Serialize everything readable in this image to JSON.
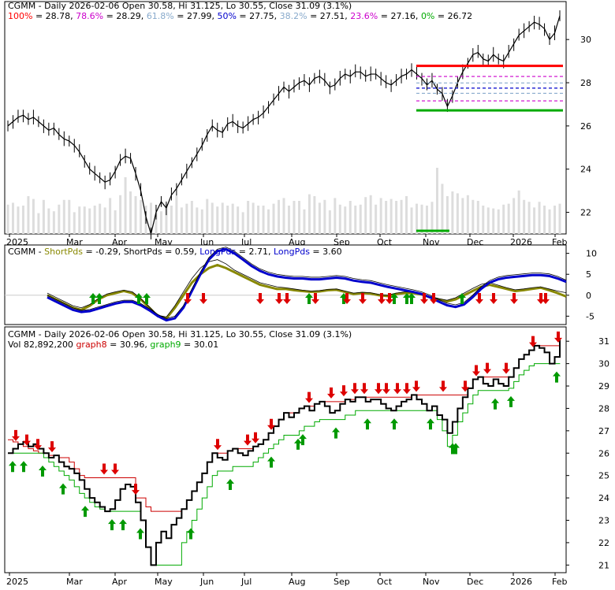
{
  "chart_data": [
    {
      "type": "line",
      "panel": "price-fibonacci",
      "legend": {
        "prefix": "CGMM - Daily 2026-02-06 Open 30.58, Hi 31.125, Lo 30.55, Close 31.09 (3.1%)",
        "levels": [
          {
            "label": "100%",
            "value": "28.78",
            "color": "#ff0000",
            "y": 28.78
          },
          {
            "label": "78.6%",
            "value": "28.29",
            "color": "#cc00cc",
            "y": 28.29
          },
          {
            "label": "61.8%",
            "value": "27.99",
            "color": "#88aacc",
            "y": 27.99
          },
          {
            "label": "50%",
            "value": "27.75",
            "color": "#0000cc",
            "y": 27.75
          },
          {
            "label": "38.2%",
            "value": "27.51",
            "color": "#88aacc",
            "y": 27.51
          },
          {
            "label": "23.6%",
            "value": "27.16",
            "color": "#cc00cc",
            "y": 27.16
          },
          {
            "label": "0%",
            "value": "26.72",
            "color": "#00aa00",
            "y": 26.72
          }
        ]
      },
      "ylim": [
        21,
        31.1
      ],
      "yticks": [
        22,
        24,
        26,
        28,
        30
      ],
      "xticks": [
        "2025",
        "Mar",
        "Apr",
        "May",
        "Jun",
        "Jul",
        "Aug",
        "Sep",
        "Oct",
        "Nov",
        "Dec",
        "2026",
        "Feb"
      ],
      "series": [
        {
          "values": [
            26.0,
            26.2,
            26.4,
            26.5,
            26.3,
            26.4,
            26.2,
            26.0,
            25.8,
            25.9,
            25.6,
            25.4,
            25.3,
            25.1,
            24.8,
            24.4,
            24.0,
            23.8,
            23.6,
            23.4,
            23.5,
            23.9,
            24.4,
            24.6,
            24.5,
            23.8,
            23.0,
            21.8,
            21.0,
            22.0,
            22.5,
            22.2,
            22.8,
            23.1,
            23.5,
            23.9,
            24.3,
            24.7,
            25.1,
            25.6,
            26.0,
            25.8,
            25.7,
            26.1,
            26.2,
            26.0,
            25.9,
            26.1,
            26.3,
            26.4,
            26.6,
            26.9,
            27.2,
            27.5,
            27.8,
            27.6,
            27.8,
            28.0,
            28.1,
            27.9,
            28.2,
            28.3,
            28.1,
            27.8,
            27.9,
            28.2,
            28.4,
            28.3,
            28.5,
            28.5,
            28.3,
            28.4,
            28.4,
            28.2,
            28.0,
            27.9,
            28.1,
            28.3,
            28.4,
            28.6,
            28.4,
            28.2,
            27.9,
            28.1,
            27.7,
            27.5,
            26.9,
            27.4,
            28.0,
            28.5,
            28.9,
            29.3,
            29.4,
            29.1,
            29.0,
            29.3,
            29.1,
            29.0,
            29.4,
            29.8,
            30.2,
            30.4,
            30.6,
            30.8,
            30.7,
            30.5,
            30.0,
            30.3,
            31.1
          ]
        }
      ],
      "volume": [
        31,
        33,
        29,
        30,
        40,
        37,
        22,
        36,
        27,
        24,
        31,
        36,
        36,
        23,
        29,
        29,
        27,
        30,
        32,
        28,
        38,
        25,
        41,
        60,
        45,
        40,
        36,
        30,
        33,
        23,
        24,
        32,
        30,
        40,
        28,
        32,
        35,
        28,
        26,
        37,
        33,
        29,
        33,
        30,
        32,
        29,
        23,
        35,
        33,
        30,
        30,
        26,
        32,
        36,
        38,
        30,
        35,
        35,
        26,
        42,
        40,
        33,
        36,
        25,
        38,
        31,
        29,
        35,
        30,
        31,
        39,
        41,
        31,
        38,
        35,
        37,
        35,
        36,
        40,
        28,
        32,
        31,
        30,
        34,
        70,
        53,
        40,
        45,
        43,
        38,
        41,
        36,
        35,
        30,
        28,
        27,
        26,
        31,
        32,
        38,
        46,
        36,
        34,
        28,
        34,
        30,
        26,
        30,
        32
      ]
    },
    {
      "type": "line",
      "panel": "guppy-oscillator",
      "legend": {
        "prefix": "CGMM",
        "items": [
          {
            "label": "ShortPds",
            "value": "-0.29",
            "color": "#888800"
          },
          {
            "label": "ShortPds",
            "value": "0.59",
            "color": "#000000"
          },
          {
            "label": "LongPds",
            "value": "2.71",
            "color": "#0000cc"
          },
          {
            "label": "LongPds",
            "value": "3.60",
            "color": "#000000"
          }
        ]
      },
      "ylim": [
        -7,
        12
      ],
      "yticks": [
        10,
        5,
        0,
        -5
      ],
      "series": [
        {
          "name": "ShortPds",
          "color": "#888800",
          "values": [
            0,
            -1,
            -2,
            -3,
            -3.5,
            -2.5,
            -1,
            0,
            0.5,
            1,
            0.5,
            -1,
            -3,
            -5,
            -5.5,
            -3,
            0,
            3,
            5,
            6.5,
            7.2,
            6.5,
            5.5,
            4.5,
            3.5,
            2.5,
            2,
            1.5,
            1.5,
            1.2,
            1,
            0.8,
            0.9,
            1.2,
            1.3,
            0.8,
            0.3,
            0.5,
            0.4,
            0,
            -0.2,
            0.3,
            0.5,
            0.5,
            0.2,
            -0.5,
            -1,
            -1.5,
            -1,
            0,
            1,
            2,
            2.5,
            2,
            1.5,
            1,
            1.2,
            1.5,
            1.8,
            1.2,
            0.5,
            -0.3
          ]
        },
        {
          "name": "ShortPds",
          "color": "#000000",
          "values": [
            0.5,
            -0.5,
            -1.5,
            -2.5,
            -3,
            -2.2,
            -0.8,
            0.3,
            0.8,
            1.2,
            0.8,
            -0.8,
            -2.8,
            -4.8,
            -5.2,
            -2.5,
            0.8,
            4,
            6.5,
            8,
            8.5,
            7.5,
            6,
            5,
            4,
            3,
            2.5,
            2,
            1.8,
            1.5,
            1.2,
            1,
            1.1,
            1.4,
            1.5,
            1,
            0.5,
            0.7,
            0.6,
            0.2,
            0,
            0.5,
            0.8,
            0.7,
            0.4,
            -0.3,
            -0.8,
            -1.2,
            -0.6,
            0.5,
            1.6,
            2.6,
            3,
            2.4,
            1.8,
            1.3,
            1.5,
            1.8,
            2,
            1.5,
            1,
            0.6
          ]
        },
        {
          "name": "LongPds",
          "color": "#0000cc",
          "values": [
            -0.5,
            -1.5,
            -2.5,
            -3.5,
            -4,
            -3.8,
            -3.2,
            -2.6,
            -2,
            -1.6,
            -1.6,
            -2.4,
            -3.6,
            -5,
            -6,
            -5.5,
            -3,
            1,
            5,
            8.5,
            10.5,
            11,
            10,
            8.5,
            7,
            5.8,
            5,
            4.5,
            4.2,
            4,
            4,
            3.8,
            3.8,
            4,
            4.2,
            4,
            3.5,
            3.2,
            3,
            2.5,
            2,
            1.6,
            1.2,
            0.8,
            0.3,
            -0.5,
            -1.5,
            -2.4,
            -2.8,
            -2.2,
            -0.5,
            1.5,
            3,
            3.8,
            4.2,
            4.4,
            4.6,
            4.8,
            4.8,
            4.6,
            4,
            3.2
          ]
        },
        {
          "name": "LongPds",
          "color": "#000000",
          "values": [
            0,
            -1,
            -2,
            -3,
            -3.6,
            -3.4,
            -2.8,
            -2.2,
            -1.6,
            -1.2,
            -1.2,
            -2,
            -3.2,
            -4.6,
            -5.6,
            -5,
            -2.5,
            1.5,
            5.5,
            9,
            11,
            11.5,
            10.5,
            9,
            7.5,
            6.3,
            5.5,
            5,
            4.7,
            4.5,
            4.5,
            4.3,
            4.3,
            4.5,
            4.7,
            4.5,
            4,
            3.7,
            3.5,
            3,
            2.5,
            2.1,
            1.7,
            1.3,
            0.8,
            0,
            -1,
            -1.9,
            -2.3,
            -1.7,
            0,
            2,
            3.5,
            4.3,
            4.7,
            4.9,
            5.1,
            5.3,
            5.3,
            5.1,
            4.5,
            3.6
          ]
        }
      ]
    },
    {
      "type": "line",
      "panel": "price-trailing-stops",
      "legend": {
        "line1": "CGMM - Daily 2026-02-06 Open 30.58, Hi 31.125, Lo 30.55, Close 31.09 (3.1%)",
        "line2_prefix": "Vol 82,892,200",
        "items": [
          {
            "label": "graph8",
            "value": "30.96",
            "color": "#cc0000"
          },
          {
            "label": "graph9",
            "value": "30.01",
            "color": "#00aa00"
          }
        ]
      },
      "ylim": [
        20.8,
        31.5
      ],
      "yticks": [
        31,
        30,
        29,
        28,
        27,
        26,
        25,
        24,
        23,
        22,
        21
      ],
      "xticks": [
        "2025",
        "Mar",
        "Apr",
        "May",
        "Jun",
        "Jul",
        "Aug",
        "Sep",
        "Oct",
        "Nov",
        "Dec",
        "2026",
        "Feb"
      ],
      "series": [
        {
          "name": "graph8",
          "color": "#cc0000",
          "values": [
            26.6,
            26.5,
            26.4,
            26.3,
            26.2,
            26.1,
            26.0,
            26.0,
            25.9,
            25.9,
            25.8,
            25.8,
            25.6,
            25.3,
            25.0,
            24.9,
            24.9,
            24.9,
            24.9,
            24.9,
            24.9,
            24.9,
            24.9,
            24.9,
            24.9,
            24.0,
            24.0,
            23.6,
            23.4,
            23.4,
            23.4,
            23.4,
            23.4,
            23.4,
            23.5,
            23.9,
            24.3,
            24.7,
            25.1,
            25.6,
            26.0,
            26.0,
            26.0,
            26.1,
            26.2,
            26.2,
            26.2,
            26.2,
            26.3,
            26.4,
            26.6,
            26.9,
            27.2,
            27.5,
            27.8,
            27.8,
            27.8,
            28.0,
            28.1,
            28.1,
            28.2,
            28.3,
            28.3,
            28.3,
            28.3,
            28.3,
            28.4,
            28.4,
            28.5,
            28.5,
            28.5,
            28.5,
            28.5,
            28.5,
            28.5,
            28.5,
            28.5,
            28.5,
            28.5,
            28.6,
            28.6,
            28.6,
            28.6,
            28.6,
            28.6,
            28.6,
            28.6,
            28.6,
            28.6,
            28.6,
            28.9,
            29.3,
            29.4,
            29.4,
            29.4,
            29.4,
            29.4,
            29.4,
            29.4,
            29.8,
            30.2,
            30.4,
            30.6,
            30.8,
            30.8,
            30.8,
            30.8,
            30.8,
            30.96
          ]
        },
        {
          "name": "graph9",
          "color": "#00aa00",
          "values": [
            26.0,
            26.0,
            26.0,
            26.0,
            26.0,
            26.0,
            26.0,
            25.8,
            25.6,
            25.4,
            25.2,
            25.0,
            24.8,
            24.5,
            24.2,
            24.0,
            23.8,
            23.6,
            23.5,
            23.4,
            23.4,
            23.4,
            23.4,
            23.4,
            23.4,
            23.4,
            23.0,
            21.8,
            21.0,
            21.0,
            21.0,
            21.0,
            21.0,
            21.0,
            22.0,
            22.5,
            23.0,
            23.5,
            24.0,
            24.5,
            25.0,
            25.2,
            25.2,
            25.2,
            25.4,
            25.4,
            25.4,
            25.4,
            25.6,
            25.8,
            26.0,
            26.2,
            26.4,
            26.6,
            26.8,
            26.8,
            26.8,
            27.0,
            27.2,
            27.2,
            27.4,
            27.5,
            27.5,
            27.5,
            27.5,
            27.5,
            27.7,
            27.7,
            27.9,
            27.9,
            27.9,
            27.9,
            27.9,
            27.9,
            27.9,
            27.9,
            27.9,
            27.9,
            27.9,
            27.9,
            27.9,
            27.9,
            27.9,
            27.9,
            27.5,
            27.0,
            26.3,
            26.8,
            27.4,
            27.8,
            28.2,
            28.6,
            28.8,
            28.8,
            28.8,
            28.8,
            28.8,
            28.8,
            28.9,
            29.2,
            29.5,
            29.7,
            29.9,
            30.0,
            30.0,
            30.0,
            30.0,
            30.0,
            30.01
          ]
        },
        {
          "name": "price",
          "color": "#000000",
          "values": [
            26.0,
            26.2,
            26.4,
            26.5,
            26.3,
            26.4,
            26.2,
            26.0,
            25.8,
            25.9,
            25.6,
            25.4,
            25.3,
            25.1,
            24.8,
            24.4,
            24.0,
            23.8,
            23.6,
            23.4,
            23.5,
            23.9,
            24.4,
            24.6,
            24.5,
            23.8,
            23.0,
            21.8,
            21.0,
            22.0,
            22.5,
            22.2,
            22.8,
            23.1,
            23.5,
            23.9,
            24.3,
            24.7,
            25.1,
            25.6,
            26.0,
            25.8,
            25.7,
            26.1,
            26.2,
            26.0,
            25.9,
            26.1,
            26.3,
            26.4,
            26.6,
            26.9,
            27.2,
            27.5,
            27.8,
            27.6,
            27.8,
            28.0,
            28.1,
            27.9,
            28.2,
            28.3,
            28.1,
            27.8,
            27.9,
            28.2,
            28.4,
            28.3,
            28.5,
            28.5,
            28.3,
            28.4,
            28.4,
            28.2,
            28.0,
            27.9,
            28.1,
            28.3,
            28.4,
            28.6,
            28.4,
            28.2,
            27.9,
            28.1,
            27.7,
            27.5,
            26.9,
            27.4,
            28.0,
            28.5,
            28.9,
            29.3,
            29.4,
            29.1,
            29.0,
            29.3,
            29.1,
            29.0,
            29.4,
            29.8,
            30.2,
            30.4,
            30.6,
            30.8,
            30.7,
            30.5,
            30.0,
            30.3,
            31.1
          ]
        }
      ]
    }
  ]
}
